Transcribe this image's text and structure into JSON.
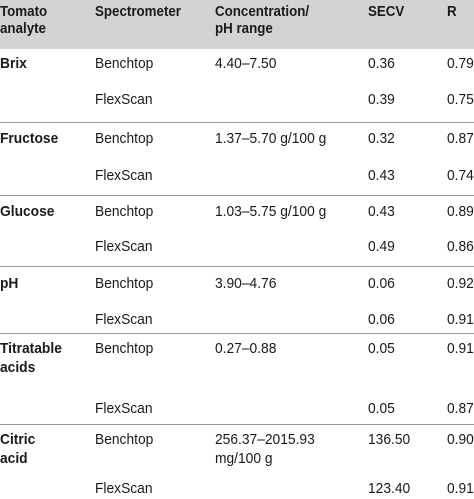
{
  "header": {
    "analyte_line1": "Tomato",
    "analyte_line2": "analyte",
    "spectrometer": "Spectrometer",
    "range_line1": "Concentration/",
    "range_line2": "pH range",
    "secv": "SECV",
    "r": "R"
  },
  "rows": [
    {
      "analyte": [
        "Brix"
      ],
      "spectrometer": "Benchtop",
      "range": [
        "4.40–7.50"
      ],
      "secv": "0.36",
      "r": "0.79"
    },
    {
      "analyte": [],
      "spectrometer": "FlexScan",
      "range": [],
      "secv": "0.39",
      "r": "0.75"
    },
    {
      "analyte": [
        "Fructose"
      ],
      "spectrometer": "Benchtop",
      "range": [
        "1.37–5.70 g/100 g"
      ],
      "secv": "0.32",
      "r": "0.87"
    },
    {
      "analyte": [],
      "spectrometer": "FlexScan",
      "range": [],
      "secv": "0.43",
      "r": "0.74"
    },
    {
      "analyte": [
        "Glucose"
      ],
      "spectrometer": "Benchtop",
      "range": [
        "1.03–5.75 g/100 g"
      ],
      "secv": "0.43",
      "r": "0.89"
    },
    {
      "analyte": [],
      "spectrometer": "FlexScan",
      "range": [],
      "secv": "0.49",
      "r": "0.86"
    },
    {
      "analyte": [
        "pH"
      ],
      "spectrometer": "Benchtop",
      "range": [
        "3.90–4.76"
      ],
      "secv": "0.06",
      "r": "0.92"
    },
    {
      "analyte": [],
      "spectrometer": "FlexScan",
      "range": [],
      "secv": "0.06",
      "r": "0.91"
    },
    {
      "analyte": [
        "Titratable",
        "acids"
      ],
      "spectrometer": "Benchtop",
      "range": [
        "0.27–0.88"
      ],
      "secv": "0.05",
      "r": "0.91"
    },
    {
      "analyte": [],
      "spectrometer": "FlexScan",
      "range": [],
      "secv": "0.05",
      "r": "0.87"
    },
    {
      "analyte": [
        "Citric",
        "acid"
      ],
      "spectrometer": "Benchtop",
      "range": [
        "256.37–2015.93",
        "mg/100 g"
      ],
      "secv": "136.50",
      "r": "0.90"
    },
    {
      "analyte": [],
      "spectrometer": "FlexScan",
      "range": [],
      "secv": "123.40",
      "r": "0.91"
    }
  ]
}
